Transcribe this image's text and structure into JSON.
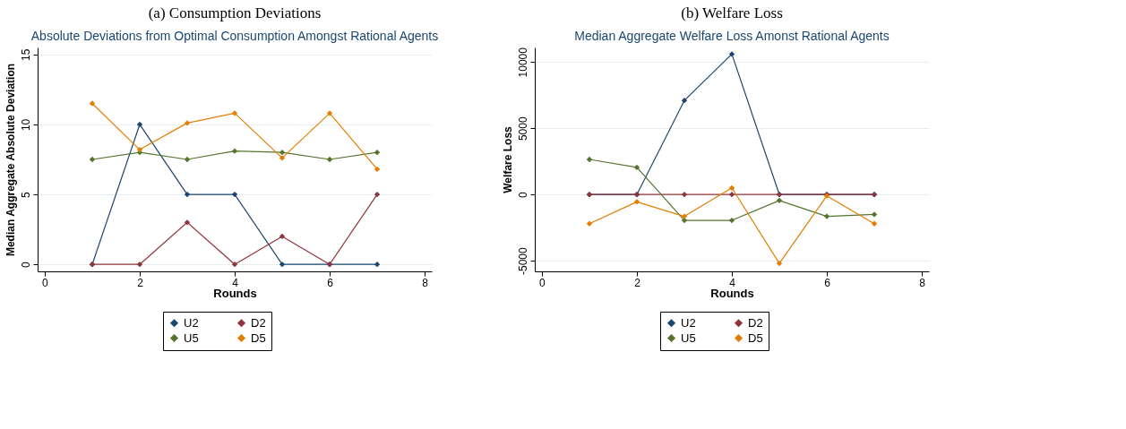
{
  "chart_data": [
    {
      "type": "line",
      "title": "(a) Consumption Deviations",
      "subtitle": "Absolute Deviations from Optimal Consumption Amongst Rational Agents",
      "xlabel": "Rounds",
      "ylabel": "Median Aggregate Absolute Deviation",
      "x": [
        1,
        2,
        3,
        4,
        5,
        6,
        7
      ],
      "xlim": [
        -0.15,
        8.15
      ],
      "xticks": [
        0,
        2,
        4,
        6,
        8
      ],
      "ylim": [
        -0.5,
        15.5
      ],
      "yticks": [
        0,
        5,
        10,
        15
      ],
      "grid": "y",
      "legend": "bottom",
      "marker": "diamond",
      "line_style": "solid",
      "series": [
        {
          "name": "U2",
          "color": "#1a476f",
          "values": [
            0,
            10,
            5,
            5,
            0,
            0,
            0
          ]
        },
        {
          "name": "D2",
          "color": "#90353b",
          "values": [
            0,
            0,
            3,
            0,
            2,
            0,
            5
          ]
        },
        {
          "name": "U5",
          "color": "#55752f",
          "values": [
            7.5,
            8,
            7.5,
            8.1,
            8,
            7.5,
            8
          ]
        },
        {
          "name": "D5",
          "color": "#e37e00",
          "values": [
            11.5,
            8.2,
            10.1,
            10.8,
            7.6,
            10.8,
            6.8
          ]
        }
      ]
    },
    {
      "type": "line",
      "title": "(b) Welfare Loss",
      "subtitle": "Median Aggregate Welfare Loss Amonst Rational Agents",
      "xlabel": "Rounds",
      "ylabel": "Welfare Loss",
      "x": [
        1,
        2,
        3,
        4,
        5,
        6,
        7
      ],
      "xlim": [
        -0.15,
        8.15
      ],
      "xticks": [
        0,
        2,
        4,
        6,
        8
      ],
      "ylim": [
        -5800,
        11100
      ],
      "yticks": [
        -5000,
        0,
        5000,
        10000
      ],
      "grid": "y",
      "legend": "bottom",
      "marker": "diamond",
      "line_style": "solid",
      "series": [
        {
          "name": "U2",
          "color": "#1a476f",
          "values": [
            0,
            0,
            7100,
            10600,
            0,
            0,
            0
          ]
        },
        {
          "name": "D2",
          "color": "#90353b",
          "values": [
            0,
            0,
            0,
            0,
            0,
            0,
            0
          ]
        },
        {
          "name": "U5",
          "color": "#55752f",
          "values": [
            2650,
            2050,
            -1950,
            -1950,
            -450,
            -1650,
            -1500
          ]
        },
        {
          "name": "D5",
          "color": "#e37e00",
          "values": [
            -2200,
            -550,
            -1650,
            500,
            -5200,
            -100,
            -2200
          ]
        }
      ]
    }
  ]
}
